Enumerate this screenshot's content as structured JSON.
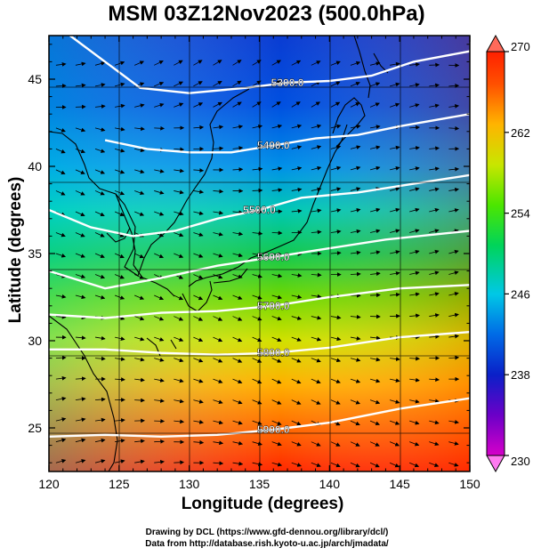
{
  "title": "MSM 03Z12Nov2023 (500.0hPa)",
  "xlabel": "Longitude (degrees)",
  "ylabel": "Latitude  (degrees)",
  "credits": {
    "line1": "Drawing by DCL (https://www.gfd-dennou.org/library/dcl/)",
    "line2": "Data from http://database.rish.kyoto-u.ac.jp/arch/jmadata/"
  },
  "chart_data": {
    "type": "heatmap",
    "x_ticks": [
      120,
      125,
      130,
      135,
      140,
      145,
      150
    ],
    "y_ticks": [
      25,
      30,
      35,
      40,
      45
    ],
    "xlim": [
      120,
      150
    ],
    "ylim": [
      22.5,
      47.5
    ],
    "colorbar": {
      "ticks": [
        230,
        238,
        246,
        254,
        262,
        270
      ],
      "range": [
        230,
        270
      ]
    },
    "contours": [
      {
        "label": "5300.0",
        "points": [
          [
            121.5,
            47.5
          ],
          [
            124,
            46
          ],
          [
            126.5,
            44.5
          ],
          [
            130,
            44.2
          ],
          [
            134,
            44.5
          ],
          [
            137,
            44.8
          ],
          [
            140,
            44.9
          ],
          [
            143,
            45.2
          ],
          [
            146,
            46
          ],
          [
            150,
            46.6
          ]
        ]
      },
      {
        "label": "5400.0",
        "points": [
          [
            124,
            41.5
          ],
          [
            127,
            41
          ],
          [
            130,
            40.8
          ],
          [
            133,
            40.8
          ],
          [
            136,
            41.2
          ],
          [
            139,
            41.6
          ],
          [
            142,
            41.8
          ],
          [
            145,
            42.3
          ],
          [
            150,
            43
          ]
        ]
      },
      {
        "label": "5500.0",
        "points": [
          [
            120,
            37.5
          ],
          [
            123,
            36.5
          ],
          [
            126,
            36
          ],
          [
            129,
            36.3
          ],
          [
            132,
            37
          ],
          [
            135,
            37.5
          ],
          [
            138,
            38.2
          ],
          [
            142,
            38.5
          ],
          [
            146,
            39
          ],
          [
            150,
            39.5
          ]
        ]
      },
      {
        "label": "5600.0",
        "points": [
          [
            120,
            34
          ],
          [
            124,
            33
          ],
          [
            128,
            33.6
          ],
          [
            132,
            34.3
          ],
          [
            136,
            34.8
          ],
          [
            140,
            35.3
          ],
          [
            144,
            35.8
          ],
          [
            150,
            36.3
          ]
        ]
      },
      {
        "label": "5700.0",
        "points": [
          [
            120,
            31.5
          ],
          [
            124,
            31.3
          ],
          [
            128,
            31.6
          ],
          [
            132,
            31.7
          ],
          [
            136,
            32
          ],
          [
            140,
            32.5
          ],
          [
            145,
            33
          ],
          [
            150,
            33.2
          ]
        ]
      },
      {
        "label": "5800.0",
        "points": [
          [
            120,
            29.5
          ],
          [
            124,
            29.5
          ],
          [
            128,
            29.3
          ],
          [
            132,
            29.2
          ],
          [
            136,
            29.3
          ],
          [
            140,
            29.6
          ],
          [
            145,
            30.2
          ],
          [
            150,
            30.5
          ]
        ]
      },
      {
        "label": "5900.0",
        "points": [
          [
            120,
            24.5
          ],
          [
            124,
            24.6
          ],
          [
            128,
            24.5
          ],
          [
            132,
            24.6
          ],
          [
            136,
            24.9
          ],
          [
            140,
            25.3
          ],
          [
            145,
            26.1
          ],
          [
            150,
            26.7
          ]
        ]
      }
    ]
  },
  "colors": {
    "contour": "#ffffff",
    "coast": "#000000",
    "frame": "#000000"
  }
}
